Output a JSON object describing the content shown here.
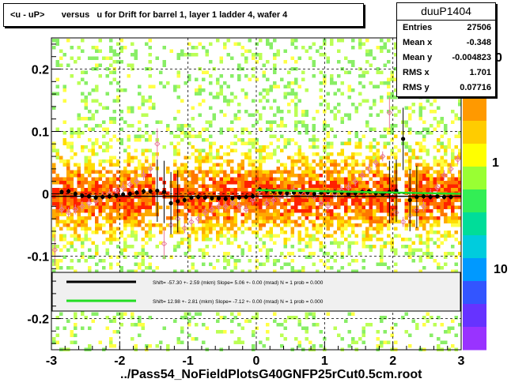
{
  "title": "<u - uP>       versus   u for Drift for barrel 1, layer 1 ladder 4, wafer 4",
  "footer": "../Pass54_NoFieldPlotsG40GNFP25rCut0.5cm.root",
  "stats": {
    "name": "duuP1404",
    "rows": [
      {
        "label": "Entries",
        "value": "27506"
      },
      {
        "label": "Mean x",
        "value": "-0.348"
      },
      {
        "label": "Mean y",
        "value": "-0.004823"
      },
      {
        "label": "RMS x",
        "value": "1.701"
      },
      {
        "label": "RMS y",
        "value": "0.07716"
      }
    ]
  },
  "colors": {
    "frame": "#000000",
    "grid": "#000000",
    "profile_black": "#000000",
    "profile_pink": "#e87a9a",
    "fit_green": "#22dd22",
    "legend_bg": "#f0f0f0",
    "palette": [
      "#ff0000",
      "#ff5500",
      "#ff9900",
      "#ffcc00",
      "#ffff00",
      "#99ff33",
      "#33ee55",
      "#00dd99",
      "#00ccdd",
      "#0099ff",
      "#3355ff",
      "#6633ff",
      "#9933ff"
    ]
  },
  "chart_data": {
    "type": "heatmap",
    "title": "<u - uP>       versus   u for Drift for barrel 1, layer 1 ladder 4, wafer 4",
    "xlim": [
      -3,
      3
    ],
    "ylim": [
      -0.25,
      0.25
    ],
    "x_ticks": [
      -3,
      -2,
      -1,
      0,
      1,
      2,
      3
    ],
    "x_tick_labels": [
      "-3",
      "-2",
      "-1",
      "0",
      "1",
      "2",
      "3"
    ],
    "y_ticks": [
      -0.2,
      -0.1,
      0,
      0.1,
      0.2
    ],
    "y_tick_labels": [
      "-0.2",
      "-0.1",
      "0",
      "0.1",
      "0.2"
    ],
    "grid": true,
    "colorbar": {
      "scale": "log",
      "tick_labels": [
        "10",
        "1",
        "0"
      ]
    },
    "profile_black": {
      "x": [
        -2.85,
        -2.75,
        -2.65,
        -2.55,
        -2.45,
        -2.35,
        -2.25,
        -2.15,
        -2.05,
        -1.95,
        -1.85,
        -1.75,
        -1.65,
        -1.55,
        -1.45,
        -1.35,
        -1.25,
        -1.15,
        -1.05,
        -0.95,
        -0.85,
        -0.75,
        -0.65,
        -0.55,
        -0.45,
        -0.35,
        -0.25,
        -0.15,
        -0.05,
        0.05,
        0.15,
        0.25,
        0.35,
        0.45,
        0.55,
        0.65,
        0.75,
        0.85,
        0.95,
        1.05,
        1.15,
        1.25,
        1.35,
        1.45,
        1.55,
        1.65,
        1.75,
        1.85,
        1.95,
        2.05,
        2.15,
        2.25,
        2.35,
        2.45,
        2.55,
        2.65,
        2.75,
        2.85
      ],
      "y": [
        0.003,
        0.004,
        0.0,
        -0.003,
        -0.004,
        -0.006,
        -0.005,
        -0.004,
        -0.003,
        -0.001,
        0.0,
        0.002,
        0.004,
        0.004,
        0.005,
        0.003,
        -0.015,
        -0.012,
        -0.01,
        -0.006,
        -0.005,
        -0.006,
        -0.007,
        -0.007,
        -0.008,
        -0.007,
        -0.006,
        -0.005,
        -0.004,
        0.007,
        0.005,
        0.004,
        0.002,
        0.001,
        0.002,
        0.003,
        0.002,
        0.0,
        0.002,
        0.003,
        0.003,
        0.002,
        0.0,
        0.001,
        0.003,
        0.004,
        0.001,
        0.0,
        0.003,
        0.005,
        0.088,
        -0.01,
        -0.005,
        -0.004,
        -0.005,
        -0.004,
        -0.005,
        -0.005
      ]
    },
    "profile_pink": {
      "x": [
        -2.95,
        -2.85,
        -2.75,
        -2.65,
        -2.55,
        -2.45,
        -2.35,
        -2.25,
        -2.15,
        -2.05,
        -1.95,
        -1.85,
        -1.75,
        -1.65,
        -1.55,
        -1.45,
        -1.35,
        -1.25,
        -1.15,
        -1.05,
        -0.95,
        -0.85,
        -0.75,
        -0.65,
        -0.55,
        -0.45,
        -0.35,
        -0.25,
        -0.15,
        -0.05,
        0.05,
        0.15,
        0.25,
        0.35,
        0.45,
        0.55,
        0.65,
        0.75,
        0.85,
        0.95,
        1.05,
        1.15,
        1.25,
        1.35,
        1.45,
        1.55,
        1.65,
        1.75,
        1.85,
        1.95,
        2.05,
        2.15,
        2.25,
        2.35,
        2.45,
        2.55,
        2.65,
        2.75,
        2.85,
        2.95
      ],
      "y": [
        -0.09,
        -0.025,
        -0.03,
        -0.025,
        -0.02,
        -0.015,
        -0.012,
        -0.005,
        0.0,
        0.005,
        0.01,
        0.015,
        0.02,
        0.03,
        0.04,
        0.08,
        -0.08,
        -0.05,
        -0.04,
        -0.055,
        -0.045,
        -0.04,
        -0.03,
        -0.025,
        -0.02,
        -0.02,
        -0.015,
        -0.02,
        -0.025,
        -0.01,
        0.005,
        -0.015,
        -0.01,
        -0.005,
        0.0,
        0.005,
        0.002,
        0.0,
        -0.005,
        -0.015,
        -0.02,
        0.0,
        0.005,
        0.01,
        0.02,
        0.03,
        0.04,
        0.05,
        0.06,
        0.13,
        -0.03,
        -0.045,
        -0.035,
        -0.025,
        -0.02,
        0.0,
        0.01,
        0.03,
        0.04,
        0.055
      ]
    },
    "fits": [
      {
        "line": "Shift=   -57.30 +- 2.59 (mkm) Slope=    5.06 +- 0.00 (mrad)  N = 1 prob = 0.000",
        "x_range": [
          -3,
          3
        ],
        "y": [
          -0.004,
          -0.004
        ],
        "color": "black"
      },
      {
        "line": "Shift=    12.98 +- 2.81 (mkm) Slope=   -7.12 +- 0.00 (mrad)  N = 1 prob = 0.000",
        "x_range": [
          0,
          3
        ],
        "y": [
          0.006,
          0.0
        ],
        "color": "green"
      }
    ]
  }
}
